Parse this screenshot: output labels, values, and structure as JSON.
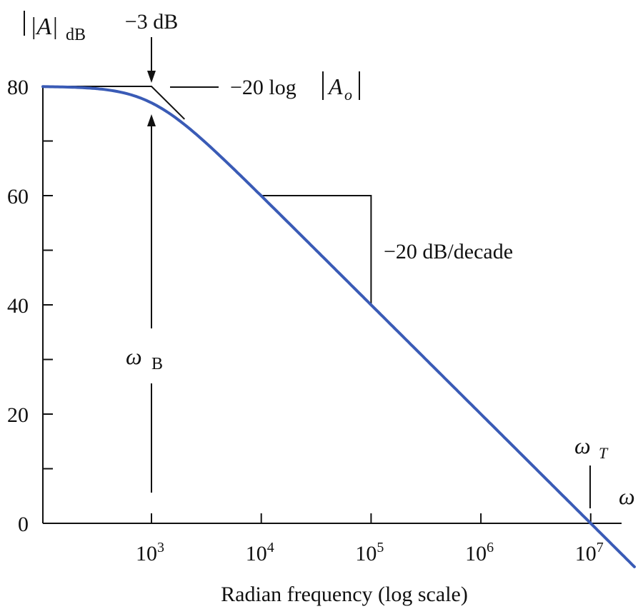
{
  "chart_data": {
    "type": "line",
    "title": "",
    "ylabel": {
      "main": "|A|",
      "sub": "dB"
    },
    "xlabel": "Radian frequency (log scale)",
    "x_axis_symbol": "ω",
    "ylim": [
      0,
      80
    ],
    "yticks": [
      "0",
      "20",
      "40",
      "60",
      "80"
    ],
    "xscale": "log",
    "xlim": [
      10,
      30000000.0
    ],
    "xticks": [
      {
        "value": 1000,
        "base": "10",
        "exp": "3"
      },
      {
        "value": 10000,
        "base": "10",
        "exp": "4"
      },
      {
        "value": 100000,
        "base": "10",
        "exp": "5"
      },
      {
        "value": 1000000,
        "base": "10",
        "exp": "6"
      },
      {
        "value": 10000000,
        "base": "10",
        "exp": "7"
      }
    ],
    "colors": {
      "curve": "#3a5bb6",
      "ink": "#111111"
    },
    "series": [
      {
        "model": "single-pole low-pass, A(dB) = 20log(Ao) - 10log(1+(w/wB)^2)",
        "dc_gain_db": 80,
        "corner_frequency": 1000,
        "x_end": 25000000
      }
    ],
    "asymptote_points": [
      [
        10,
        80
      ],
      [
        1000,
        80
      ],
      [
        2000,
        74
      ]
    ],
    "slope_triangle": {
      "x1": 10000,
      "x2": 100000,
      "y_top": 60,
      "y_bottom": 40
    },
    "annotations": {
      "minus3db": "−3 dB",
      "dc_gain": {
        "prefix": "−20 log",
        "symbol": "A",
        "sub": "o"
      },
      "slope": "−20 dB/decade",
      "wb": {
        "symbol": "ω",
        "sub": "B"
      },
      "wt": {
        "symbol": "ω",
        "sub": "T"
      }
    }
  }
}
